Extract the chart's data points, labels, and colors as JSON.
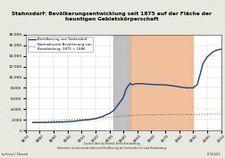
{
  "title": "Stahnsdorf: Bevölkerungsentwicklung seit 1875 auf der Fläche der\nheuntigen Gebietskörperschaft",
  "xlim": [
    1870,
    2010
  ],
  "ylim": [
    0,
    18000
  ],
  "yticks": [
    0,
    2000,
    4000,
    6000,
    8000,
    10000,
    12000,
    14000,
    16000,
    18000
  ],
  "ytick_labels": [
    "0",
    "2.000",
    "4.000",
    "6.000",
    "8.000",
    "10.000",
    "12.000",
    "14.000",
    "16.000",
    "18.000"
  ],
  "xticks": [
    1870,
    1880,
    1890,
    1900,
    1910,
    1920,
    1930,
    1940,
    1950,
    1960,
    1970,
    1980,
    1990,
    2000,
    2010
  ],
  "nazi_start": 1933,
  "nazi_end": 1945,
  "east_start": 1945,
  "east_end": 1990,
  "nazi_color": "#b0b0b0",
  "east_color": "#f0b080",
  "pop_color": "#1a4080",
  "compare_color": "#505050",
  "pop_label": "Bevölkerung von Stahnsdorf",
  "compare_label": "Normalisierte Bevölkerung von\nBrandenburg: 1875 = 1486",
  "population_data": [
    [
      1875,
      1486
    ],
    [
      1880,
      1490
    ],
    [
      1885,
      1500
    ],
    [
      1890,
      1530
    ],
    [
      1895,
      1560
    ],
    [
      1900,
      1620
    ],
    [
      1905,
      1720
    ],
    [
      1910,
      1900
    ],
    [
      1915,
      2000
    ],
    [
      1920,
      2200
    ],
    [
      1925,
      2600
    ],
    [
      1930,
      3200
    ],
    [
      1933,
      3700
    ],
    [
      1935,
      4400
    ],
    [
      1939,
      5800
    ],
    [
      1940,
      6200
    ],
    [
      1942,
      7800
    ],
    [
      1945,
      8900
    ],
    [
      1946,
      8600
    ],
    [
      1950,
      8800
    ],
    [
      1952,
      8800
    ],
    [
      1955,
      8750
    ],
    [
      1960,
      8650
    ],
    [
      1965,
      8600
    ],
    [
      1970,
      8550
    ],
    [
      1975,
      8400
    ],
    [
      1980,
      8200
    ],
    [
      1985,
      8000
    ],
    [
      1990,
      8000
    ],
    [
      1993,
      8600
    ],
    [
      1995,
      10500
    ],
    [
      1997,
      12500
    ],
    [
      2000,
      13800
    ],
    [
      2003,
      14500
    ],
    [
      2005,
      14900
    ],
    [
      2007,
      15100
    ],
    [
      2010,
      15300
    ]
  ],
  "compare_data": [
    [
      1875,
      1486
    ],
    [
      1880,
      1560
    ],
    [
      1885,
      1650
    ],
    [
      1890,
      1750
    ],
    [
      1895,
      1850
    ],
    [
      1900,
      1950
    ],
    [
      1905,
      2050
    ],
    [
      1910,
      2150
    ],
    [
      1915,
      2150
    ],
    [
      1920,
      2250
    ],
    [
      1925,
      2350
    ],
    [
      1930,
      2450
    ],
    [
      1933,
      2520
    ],
    [
      1935,
      2580
    ],
    [
      1939,
      2680
    ],
    [
      1940,
      2720
    ],
    [
      1942,
      2780
    ],
    [
      1945,
      2820
    ],
    [
      1946,
      2800
    ],
    [
      1950,
      2850
    ],
    [
      1955,
      2900
    ],
    [
      1960,
      2920
    ],
    [
      1965,
      2950
    ],
    [
      1970,
      2970
    ],
    [
      1975,
      2980
    ],
    [
      1980,
      2990
    ],
    [
      1985,
      2980
    ],
    [
      1990,
      2980
    ],
    [
      1993,
      3000
    ],
    [
      1995,
      3020
    ],
    [
      1997,
      3030
    ],
    [
      2000,
      3040
    ],
    [
      2003,
      3040
    ],
    [
      2005,
      3040
    ],
    [
      2007,
      3040
    ],
    [
      2010,
      3040
    ]
  ],
  "bg_color": "#ffffff",
  "outer_bg": "#e8e8e0",
  "source_text": "Quellen: Amt für Statistik Berlin-Brandenburg\nHistorische Gemeindestatistiken und Bevölkerung der Gemeinden im Land Brandenburg",
  "author_text": "by Henry S. Ehrhardt",
  "date_text": "17.08.2010"
}
